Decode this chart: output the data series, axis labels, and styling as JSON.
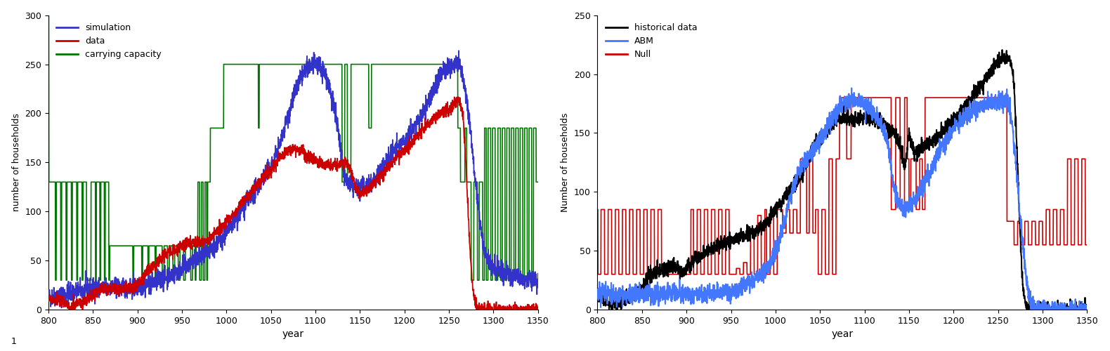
{
  "fig1": {
    "xlabel": "year",
    "ylabel": "number of households",
    "xlim": [
      800,
      1350
    ],
    "ylim": [
      0,
      300
    ],
    "xticks": [
      800,
      850,
      900,
      950,
      1000,
      1050,
      1100,
      1150,
      1200,
      1250,
      1300,
      1350
    ],
    "yticks": [
      0,
      50,
      100,
      150,
      200,
      250,
      300
    ],
    "colors": {
      "simulation": "#3333cc",
      "data": "#cc0000",
      "carrying_capacity": "#007700"
    }
  },
  "fig2": {
    "xlabel": "year",
    "ylabel": "Number of households",
    "xlim": [
      800,
      1350
    ],
    "ylim": [
      0,
      250
    ],
    "xticks": [
      800,
      850,
      900,
      950,
      1000,
      1050,
      1100,
      1150,
      1200,
      1250,
      1300,
      1350
    ],
    "yticks": [
      0,
      50,
      100,
      150,
      200,
      250
    ],
    "colors": {
      "historical_data": "#000000",
      "ABM": "#4477ff",
      "Null": "#cc0000"
    }
  }
}
